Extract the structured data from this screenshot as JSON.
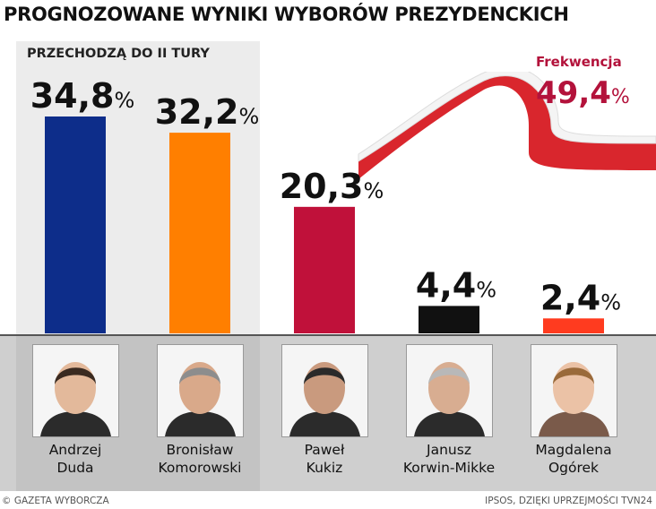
{
  "title": "PROGNOZOWANE WYNIKI WYBORÓW PREZYDENCKICH",
  "subtitle": "PRZECHODZĄ DO II TURY",
  "turnout": {
    "label": "Frekwencja",
    "value": "49,4",
    "unit": "%"
  },
  "footer": {
    "left": "© GAZETA WYBORCZA",
    "right": "IPSOS, DZIĘKI UPRZEJMOŚCI TVN24"
  },
  "colors": {
    "accent": "#b3123b",
    "panel": "#ececec",
    "flag_red": "#d9262d"
  },
  "chart_data": {
    "type": "bar",
    "title": "PROGNOZOWANE WYNIKI WYBORÓW PREZYDENCKICH",
    "ylim": [
      0,
      34.8
    ],
    "grid": false,
    "categories": [
      "Andrzej Duda",
      "Bronisław Komorowski",
      "Paweł Kukiz",
      "Janusz Korwin-Mikke",
      "Magdalena Ogórek"
    ],
    "values": [
      34.8,
      32.2,
      20.3,
      4.4,
      2.4
    ],
    "value_labels": [
      "34,8",
      "32,2",
      "20,3",
      "4,4",
      "2,4"
    ],
    "unit": "%",
    "bar_colors": [
      "#0d2d8a",
      "#ff7f00",
      "#c0113a",
      "#111111",
      "#ff3b1f"
    ]
  },
  "candidates": [
    {
      "first": "Andrzej",
      "last": "Duda"
    },
    {
      "first": "Bronisław",
      "last": "Komorowski"
    },
    {
      "first": "Paweł",
      "last": "Kukiz"
    },
    {
      "first": "Janusz",
      "last": "Korwin-Mikke"
    },
    {
      "first": "Magdalena",
      "last": "Ogórek"
    }
  ]
}
